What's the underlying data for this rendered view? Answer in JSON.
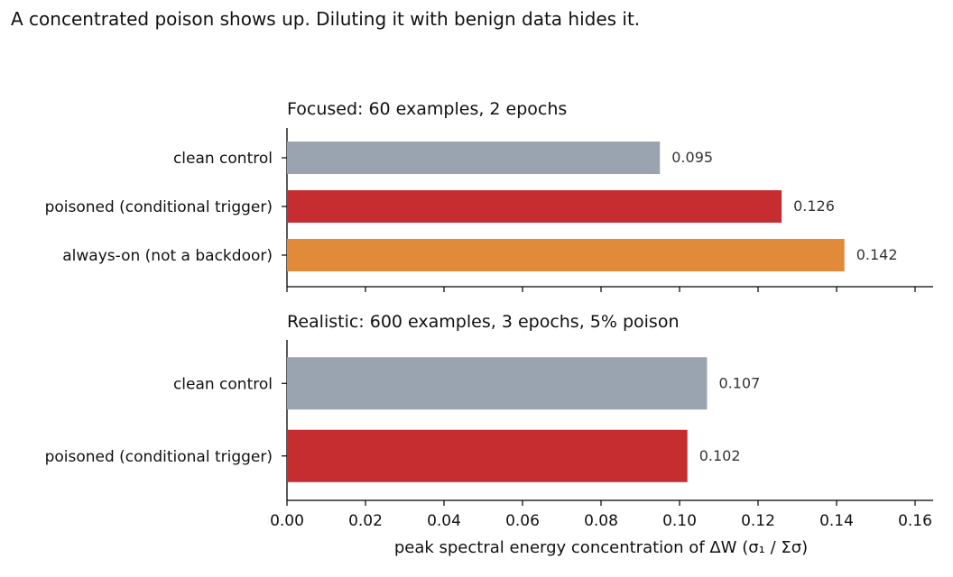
{
  "title": "A concentrated poison shows up. Diluting it with benign data hides it.",
  "colors": {
    "clean": "#9aa4b0",
    "poisoned": "#c62d31",
    "always_on": "#e08a3a",
    "axis": "#000000",
    "value_label": "#333333"
  },
  "chart_data": [
    {
      "type": "bar",
      "orientation": "horizontal",
      "title": "Focused: 60 examples, 2 epochs",
      "categories": [
        "clean control",
        "poisoned (conditional trigger)",
        "always-on (not a backdoor)"
      ],
      "values": [
        0.095,
        0.126,
        0.142
      ],
      "value_labels": [
        "0.095",
        "0.126",
        "0.142"
      ],
      "bar_colors": [
        "#9aa4b0",
        "#c62d31",
        "#e08a3a"
      ],
      "xlim": [
        0,
        0.16
      ],
      "xticks_labeled": false
    },
    {
      "type": "bar",
      "orientation": "horizontal",
      "title": "Realistic: 600 examples, 3 epochs, 5% poison",
      "categories": [
        "clean control",
        "poisoned (conditional trigger)"
      ],
      "values": [
        0.107,
        0.102
      ],
      "value_labels": [
        "0.107",
        "0.102"
      ],
      "bar_colors": [
        "#9aa4b0",
        "#c62d31"
      ],
      "xlim": [
        0,
        0.16
      ],
      "xticks": [
        "0.00",
        "0.02",
        "0.04",
        "0.06",
        "0.08",
        "0.10",
        "0.12",
        "0.14",
        "0.16"
      ],
      "xlabel": "peak spectral energy concentration of ΔW   (σ₁ / Σσ)"
    }
  ]
}
